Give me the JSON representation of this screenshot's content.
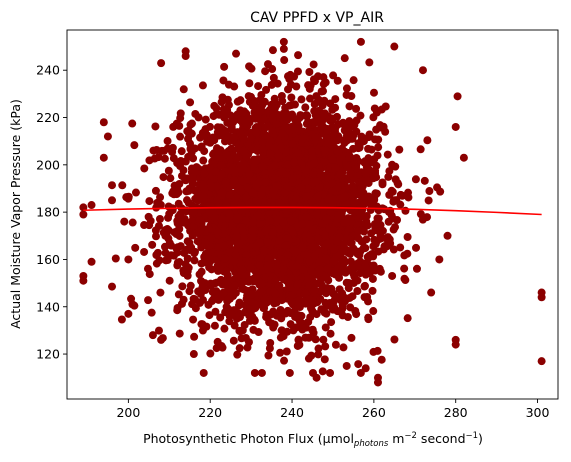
{
  "chart_data": {
    "type": "scatter",
    "title": "CAV PPFD x VP_AIR",
    "xlabel": {
      "prefix": "Photosynthetic Photon Flux (µmol",
      "sub": "photons",
      "mid": " m",
      "sup1": "−2",
      "mid2": " second",
      "sup2": "−1",
      "suffix": ")"
    },
    "ylabel": "Actual Moisture Vapor Pressure (kPa)",
    "xlim": [
      185,
      305
    ],
    "ylim": [
      101,
      257
    ],
    "x_ticks": [
      200,
      220,
      240,
      260,
      280,
      300
    ],
    "y_ticks": [
      120,
      140,
      160,
      180,
      200,
      220,
      240
    ],
    "grid": false,
    "legend": "none",
    "point_color": "#8b0000",
    "fit_color": "#ff0000",
    "points_cloud": {
      "x_center": 237,
      "x_spread": 12,
      "y_center": 181,
      "y_spread": 22,
      "count": 4500
    },
    "points_outliers": [
      {
        "x": 189,
        "y": 182
      },
      {
        "x": 189,
        "y": 179
      },
      {
        "x": 189,
        "y": 153
      },
      {
        "x": 189,
        "y": 151
      },
      {
        "x": 191,
        "y": 183
      },
      {
        "x": 191,
        "y": 159
      },
      {
        "x": 194,
        "y": 218
      },
      {
        "x": 195,
        "y": 212
      },
      {
        "x": 194,
        "y": 203
      },
      {
        "x": 196,
        "y": 185
      },
      {
        "x": 199,
        "y": 176
      },
      {
        "x": 200,
        "y": 160
      },
      {
        "x": 200,
        "y": 137
      },
      {
        "x": 201,
        "y": 141
      },
      {
        "x": 206,
        "y": 128
      },
      {
        "x": 208,
        "y": 126
      },
      {
        "x": 208,
        "y": 243
      },
      {
        "x": 214,
        "y": 248
      },
      {
        "x": 214,
        "y": 246
      },
      {
        "x": 216,
        "y": 120
      },
      {
        "x": 238,
        "y": 252
      },
      {
        "x": 238,
        "y": 249
      },
      {
        "x": 246,
        "y": 110
      },
      {
        "x": 258,
        "y": 114
      },
      {
        "x": 261,
        "y": 108
      },
      {
        "x": 261,
        "y": 110
      },
      {
        "x": 265,
        "y": 250
      },
      {
        "x": 272,
        "y": 240
      },
      {
        "x": 274,
        "y": 146
      },
      {
        "x": 276,
        "y": 160
      },
      {
        "x": 278,
        "y": 170
      },
      {
        "x": 280,
        "y": 126
      },
      {
        "x": 280,
        "y": 124
      },
      {
        "x": 280,
        "y": 216
      },
      {
        "x": 282,
        "y": 203
      },
      {
        "x": 301,
        "y": 146
      },
      {
        "x": 301,
        "y": 144
      },
      {
        "x": 301,
        "y": 117
      }
    ],
    "fit_line": {
      "x": [
        189,
        200,
        210,
        220,
        230,
        240,
        250,
        260,
        270,
        280,
        290,
        301
      ],
      "y": [
        180.8,
        181.3,
        181.6,
        181.9,
        182.0,
        182.0,
        181.9,
        181.6,
        181.2,
        180.6,
        179.9,
        179.0
      ]
    }
  }
}
